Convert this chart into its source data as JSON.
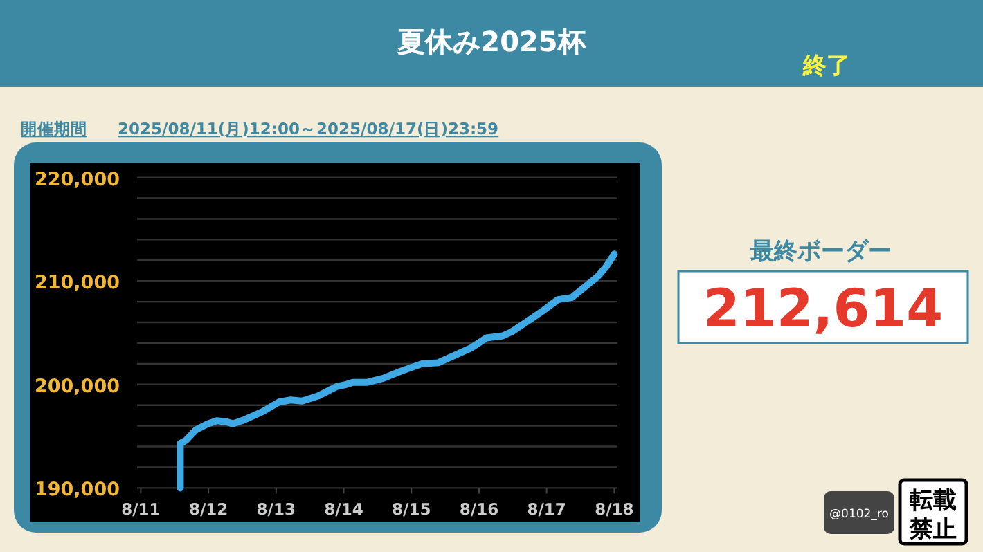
{
  "chart_data": {
    "type": "line",
    "title": "夏休み2025杯",
    "subtitle": "開催期間　2025/08/11(月)12:00～2025/08/17(日)23:59",
    "annotations": [
      "終了",
      "最終ボーダー",
      "212,614",
      "@0102_ro",
      "転載禁止"
    ],
    "x": [
      "2025-08-11T14:00",
      "2025-08-11T14:00",
      "2025-08-11T16:00",
      "2025-08-11T19:30",
      "2025-08-11T23:45",
      "2025-08-12T03:00",
      "2025-08-12T06:15",
      "2025-08-12T08:40",
      "2025-08-12T12:50",
      "2025-08-12T19:20",
      "2025-08-13T01:00",
      "2025-08-13T05:10",
      "2025-08-13T09:15",
      "2025-08-13T15:00",
      "2025-08-13T21:30",
      "2025-08-14T00:50",
      "2025-08-14T03:15",
      "2025-08-14T08:10",
      "2025-08-14T14:00",
      "2025-08-14T20:25",
      "2025-08-15T03:45",
      "2025-08-15T09:30",
      "2025-08-15T14:25",
      "2025-08-15T21:00",
      "2025-08-16T02:40",
      "2025-08-16T08:25",
      "2025-08-16T11:40",
      "2025-08-16T18:15",
      "2025-08-16T23:05",
      "2025-08-17T04:00",
      "2025-08-17T08:55",
      "2025-08-17T13:00",
      "2025-08-17T18:00",
      "2025-08-17T21:10",
      "2025-08-18T00:00"
    ],
    "series": [
      {
        "color": "#3fa9e6",
        "values": [
          190000,
          194300,
          194600,
          195600,
          196200,
          196500,
          196400,
          196200,
          196600,
          197400,
          198300,
          198500,
          198400,
          198900,
          199800,
          200000,
          200200,
          200200,
          200600,
          201300,
          202000,
          202100,
          202700,
          203500,
          204500,
          204700,
          205100,
          206300,
          207200,
          208200,
          208400,
          209300,
          210400,
          211400,
          212600
        ]
      }
    ],
    "xlim": [
      "2025-08-11",
      "2025-08-18"
    ],
    "xticks": [
      {
        "value": "2025-08-11",
        "label": "8/11"
      },
      {
        "value": "2025-08-12",
        "label": "8/12"
      },
      {
        "value": "2025-08-13",
        "label": "8/13"
      },
      {
        "value": "2025-08-14",
        "label": "8/14"
      },
      {
        "value": "2025-08-15",
        "label": "8/15"
      },
      {
        "value": "2025-08-16",
        "label": "8/16"
      },
      {
        "value": "2025-08-17",
        "label": "8/17"
      },
      {
        "value": "2025-08-18",
        "label": "8/18"
      }
    ],
    "ylim": [
      190000,
      220000
    ],
    "yticks": [
      {
        "value": 190000,
        "label": "190,000"
      },
      {
        "value": 192000,
        "label": null
      },
      {
        "value": 194000,
        "label": null
      },
      {
        "value": 196000,
        "label": null
      },
      {
        "value": 198000,
        "label": null
      },
      {
        "value": 200000,
        "label": "200,000"
      },
      {
        "value": 202000,
        "label": null
      },
      {
        "value": 204000,
        "label": null
      },
      {
        "value": 206000,
        "label": null
      },
      {
        "value": 208000,
        "label": null
      },
      {
        "value": 210000,
        "label": "210,000"
      },
      {
        "value": 212000,
        "label": null
      },
      {
        "value": 214000,
        "label": null
      },
      {
        "value": 216000,
        "label": null
      },
      {
        "value": 218000,
        "label": null
      },
      {
        "value": 220000,
        "label": "220,000"
      }
    ],
    "grid": "y"
  }
}
